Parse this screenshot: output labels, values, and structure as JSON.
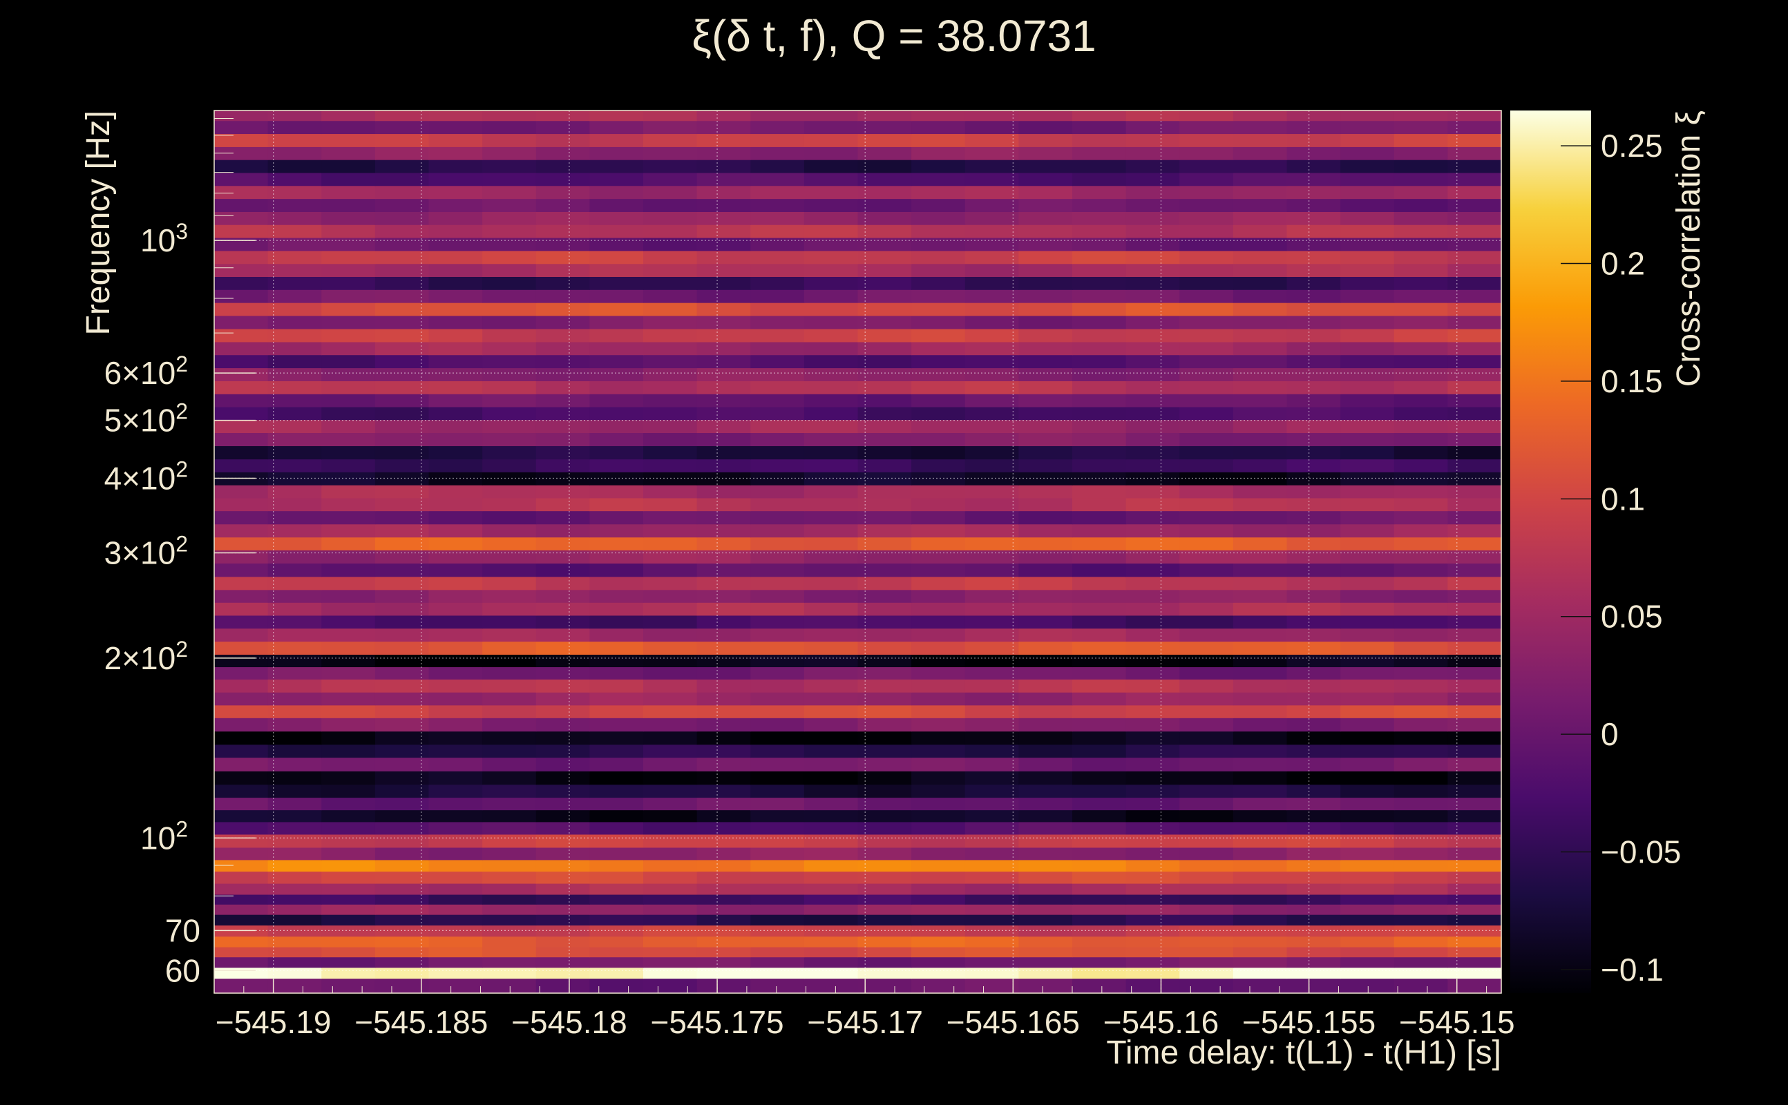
{
  "chart_data": {
    "type": "heatmap",
    "title": "ξ(δ t, f), Q = 38.0731",
    "xlabel": "Time delay: t(L1) - t(H1) [s]",
    "ylabel": "Frequency [Hz]",
    "colorbar_label": "Cross-correlation ξ",
    "y_scale": "log",
    "grid": true,
    "xlim": [
      -545.192,
      -545.1485
    ],
    "ylim": [
      55,
      1650
    ],
    "zlim": [
      -0.11,
      0.265
    ],
    "colormap": [
      "#000004",
      "#1b0c41",
      "#4a0c6b",
      "#781c6d",
      "#a52c60",
      "#cf4446",
      "#ed6925",
      "#fb9b06",
      "#f7d13d",
      "#fcffe4"
    ],
    "x_ticks": [
      {
        "value": -545.19,
        "label": "−545.19"
      },
      {
        "value": -545.185,
        "label": "−545.185"
      },
      {
        "value": -545.18,
        "label": "−545.18"
      },
      {
        "value": -545.175,
        "label": "−545.175"
      },
      {
        "value": -545.17,
        "label": "−545.17"
      },
      {
        "value": -545.165,
        "label": "−545.165"
      },
      {
        "value": -545.16,
        "label": "−545.16"
      },
      {
        "value": -545.155,
        "label": "−545.155"
      },
      {
        "value": -545.15,
        "label": "−545.15"
      }
    ],
    "y_ticks": [
      {
        "value": 60,
        "label": "60",
        "exp": ""
      },
      {
        "value": 70,
        "label": "70",
        "exp": ""
      },
      {
        "value": 100,
        "label": "10",
        "exp": "2"
      },
      {
        "value": 200,
        "label": "2×10",
        "exp": "2"
      },
      {
        "value": 300,
        "label": "3×10",
        "exp": "2"
      },
      {
        "value": 400,
        "label": "4×10",
        "exp": "2"
      },
      {
        "value": 500,
        "label": "5×10",
        "exp": "2"
      },
      {
        "value": 600,
        "label": "6×10",
        "exp": "2"
      },
      {
        "value": 1000,
        "label": "10",
        "exp": "3"
      }
    ],
    "colorbar_ticks": [
      {
        "value": -0.1,
        "label": "−0.1"
      },
      {
        "value": -0.05,
        "label": "−0.05"
      },
      {
        "value": 0,
        "label": "0"
      },
      {
        "value": 0.05,
        "label": "0.05"
      },
      {
        "value": 0.1,
        "label": "0.1"
      },
      {
        "value": 0.15,
        "label": "0.15"
      },
      {
        "value": 0.2,
        "label": "0.2"
      },
      {
        "value": 0.25,
        "label": "0.25"
      }
    ],
    "bands": [
      {
        "freq": 57,
        "xi": 0.0
      },
      {
        "freq": 59.5,
        "xi": 0.26
      },
      {
        "freq": 62,
        "xi": 0.01
      },
      {
        "freq": 64.5,
        "xi": 0.11
      },
      {
        "freq": 67,
        "xi": 0.13
      },
      {
        "freq": 70,
        "xi": 0.09
      },
      {
        "freq": 73,
        "xi": -0.06
      },
      {
        "freq": 76,
        "xi": 0.04
      },
      {
        "freq": 79,
        "xi": -0.04
      },
      {
        "freq": 82,
        "xi": 0.06
      },
      {
        "freq": 86,
        "xi": 0.1
      },
      {
        "freq": 90,
        "xi": 0.16
      },
      {
        "freq": 94,
        "xi": 0.03
      },
      {
        "freq": 99,
        "xi": 0.09
      },
      {
        "freq": 104,
        "xi": -0.02
      },
      {
        "freq": 109,
        "xi": -0.09
      },
      {
        "freq": 114,
        "xi": 0.0
      },
      {
        "freq": 120,
        "xi": -0.07
      },
      {
        "freq": 126,
        "xi": -0.1
      },
      {
        "freq": 133,
        "xi": 0.01
      },
      {
        "freq": 140,
        "xi": -0.06
      },
      {
        "freq": 147,
        "xi": -0.1
      },
      {
        "freq": 155,
        "xi": 0.02
      },
      {
        "freq": 163,
        "xi": 0.1
      },
      {
        "freq": 171,
        "xi": 0.04
      },
      {
        "freq": 180,
        "xi": 0.07
      },
      {
        "freq": 189,
        "xi": 0.01
      },
      {
        "freq": 198,
        "xi": -0.1
      },
      {
        "freq": 208,
        "xi": 0.12
      },
      {
        "freq": 219,
        "xi": 0.05
      },
      {
        "freq": 230,
        "xi": -0.03
      },
      {
        "freq": 242,
        "xi": 0.06
      },
      {
        "freq": 254,
        "xi": 0.03
      },
      {
        "freq": 267,
        "xi": 0.08
      },
      {
        "freq": 281,
        "xi": -0.01
      },
      {
        "freq": 296,
        "xi": 0.04
      },
      {
        "freq": 311,
        "xi": 0.13
      },
      {
        "freq": 327,
        "xi": 0.05
      },
      {
        "freq": 344,
        "xi": 0.0
      },
      {
        "freq": 362,
        "xi": 0.07
      },
      {
        "freq": 380,
        "xi": 0.06
      },
      {
        "freq": 400,
        "xi": -0.09
      },
      {
        "freq": 420,
        "xi": -0.04
      },
      {
        "freq": 442,
        "xi": -0.07
      },
      {
        "freq": 465,
        "xi": 0.02
      },
      {
        "freq": 489,
        "xi": 0.05
      },
      {
        "freq": 514,
        "xi": -0.03
      },
      {
        "freq": 540,
        "xi": 0.0
      },
      {
        "freq": 568,
        "xi": 0.07
      },
      {
        "freq": 597,
        "xi": 0.03
      },
      {
        "freq": 628,
        "xi": -0.02
      },
      {
        "freq": 660,
        "xi": 0.05
      },
      {
        "freq": 694,
        "xi": 0.09
      },
      {
        "freq": 730,
        "xi": 0.02
      },
      {
        "freq": 768,
        "xi": 0.11
      },
      {
        "freq": 807,
        "xi": 0.01
      },
      {
        "freq": 849,
        "xi": -0.05
      },
      {
        "freq": 892,
        "xi": 0.06
      },
      {
        "freq": 938,
        "xi": 0.09
      },
      {
        "freq": 986,
        "xi": 0.0
      },
      {
        "freq": 1037,
        "xi": 0.07
      },
      {
        "freq": 1090,
        "xi": 0.04
      },
      {
        "freq": 1146,
        "xi": 0.0
      },
      {
        "freq": 1205,
        "xi": 0.05
      },
      {
        "freq": 1267,
        "xi": -0.02
      },
      {
        "freq": 1332,
        "xi": -0.06
      },
      {
        "freq": 1400,
        "xi": 0.03
      },
      {
        "freq": 1472,
        "xi": 0.09
      },
      {
        "freq": 1548,
        "xi": 0.01
      },
      {
        "freq": 1627,
        "xi": 0.06
      }
    ]
  }
}
